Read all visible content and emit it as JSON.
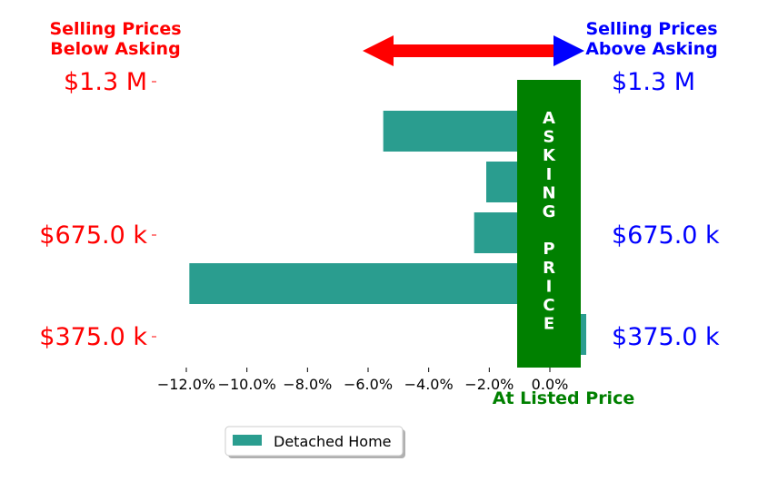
{
  "header": {
    "below_label_line1": "Selling Prices",
    "below_label_line2": "Below Asking",
    "above_label_line1": "Selling Prices",
    "above_label_line2": "Above Asking"
  },
  "center_band": {
    "label_lines": [
      "A",
      "S",
      "K",
      "I",
      "N",
      "G",
      "",
      "P",
      "R",
      "I",
      "C",
      "E"
    ],
    "xlabel": "At Listed Price"
  },
  "colors": {
    "below": "#ff0000",
    "above": "#0000ff",
    "bar": "#2a9d8f",
    "band": "#008000",
    "xlabel": "#008000"
  },
  "chart_data": {
    "type": "bar",
    "orientation": "horizontal",
    "x": {
      "label": "",
      "lim": [
        -12.9,
        1.2
      ],
      "ticks": [
        -12,
        -10,
        -8,
        -6,
        -4,
        -2,
        0
      ],
      "tick_labels": [
        "−12.0%",
        "−10.0%",
        "−8.0%",
        "−6.0%",
        "−4.0%",
        "−2.0%",
        "0.0%"
      ]
    },
    "y": {
      "tick_labels_left": [
        "$1.3 M",
        "$675.0 k",
        "$375.0 k"
      ],
      "tick_labels_right": [
        "$1.3 M",
        "$675.0 k",
        "$375.0 k"
      ]
    },
    "series": [
      {
        "name": "Detached Home",
        "values": [
          -5.5,
          -2.1,
          -2.5,
          -11.9,
          1.2
        ]
      }
    ],
    "legend": {
      "placement": "bottom-center"
    }
  }
}
